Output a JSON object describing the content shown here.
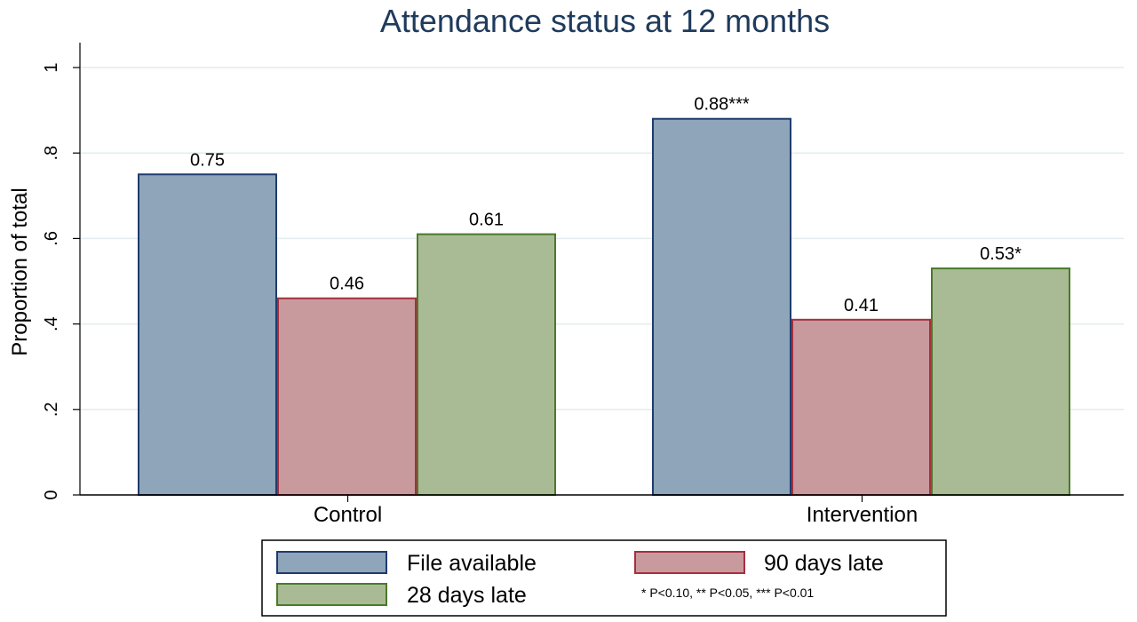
{
  "chart_data": {
    "type": "bar",
    "title": "Attendance status at 12 months",
    "xlabel": "",
    "ylabel": "Proportion of total",
    "ylim": [
      0,
      1
    ],
    "yticks": [
      0,
      0.2,
      0.4,
      0.6,
      0.8,
      1
    ],
    "ytick_labels": [
      "0",
      ".2",
      ".4",
      ".6",
      ".8",
      "1"
    ],
    "grid": true,
    "categories": [
      "Control",
      "Intervention"
    ],
    "series": [
      {
        "name": "File available",
        "values": [
          0.75,
          0.88
        ],
        "labels": [
          "0.75",
          "0.88***"
        ],
        "color": "#8ea5ba",
        "edge": "#1f3b6e"
      },
      {
        "name": "90 days late",
        "values": [
          0.46,
          0.41
        ],
        "labels": [
          "0.46",
          "0.41"
        ],
        "color": "#c99a9d",
        "edge": "#a4303e"
      },
      {
        "name": "28 days late",
        "values": [
          0.61,
          0.53
        ],
        "labels": [
          "0.61",
          "0.53*"
        ],
        "color": "#a9bb94",
        "edge": "#4a7a2a"
      }
    ],
    "legend_position": "bottom",
    "legend_note": "* P<0.10, ** P<0.05, *** P<0.01"
  }
}
